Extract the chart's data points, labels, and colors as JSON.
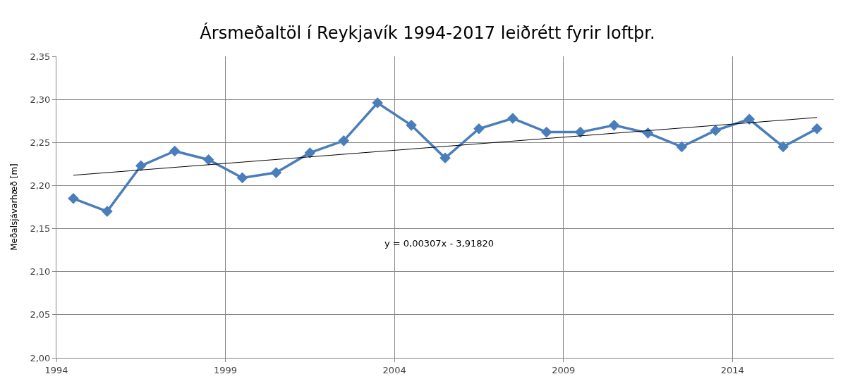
{
  "chart_data": {
    "type": "line",
    "title": "Ársmeðaltöl í Reykjavík 1994-2017 leiðrétt fyrir loftþr.",
    "ylabel": "Meðalsjávarhæð [m]",
    "x": [
      1994.5,
      1995.5,
      1996.5,
      1997.5,
      1998.5,
      1999.5,
      2000.5,
      2001.5,
      2002.5,
      2003.5,
      2004.5,
      2005.5,
      2006.5,
      2007.5,
      2008.5,
      2009.5,
      2010.5,
      2011.5,
      2012.5,
      2013.5,
      2014.5,
      2015.5,
      2016.5
    ],
    "series": [
      {
        "color": "#4a7ebb",
        "marker": "diamond",
        "values": [
          2.185,
          2.17,
          2.223,
          2.24,
          2.23,
          2.209,
          2.215,
          2.238,
          2.252,
          2.296,
          2.27,
          2.232,
          2.266,
          2.278,
          2.262,
          2.262,
          2.27,
          2.261,
          2.245,
          2.264,
          2.277,
          2.245,
          2.266
        ]
      },
      {
        "type": "line",
        "color": "#000000",
        "marker": "none",
        "x": [
          1994.5,
          2016.5
        ],
        "values": [
          2.212,
          2.279
        ]
      }
    ],
    "annotations": [
      "y = 0,00307x - 3,91820"
    ],
    "xlim": [
      1994,
      2017
    ],
    "xticks": [
      1994,
      1999,
      2004,
      2009,
      2014
    ],
    "ylim": [
      2.0,
      2.35
    ],
    "yticks": [
      {
        "value": 2.0,
        "label": "2,00"
      },
      {
        "value": 2.05,
        "label": "2,05"
      },
      {
        "value": 2.1,
        "label": "2,10"
      },
      {
        "value": 2.15,
        "label": "2,15"
      },
      {
        "value": 2.2,
        "label": "2,20"
      },
      {
        "value": 2.25,
        "label": "2,25"
      },
      {
        "value": 2.3,
        "label": "2,30"
      },
      {
        "value": 2.35,
        "label": "2,35"
      }
    ],
    "grid": true
  }
}
